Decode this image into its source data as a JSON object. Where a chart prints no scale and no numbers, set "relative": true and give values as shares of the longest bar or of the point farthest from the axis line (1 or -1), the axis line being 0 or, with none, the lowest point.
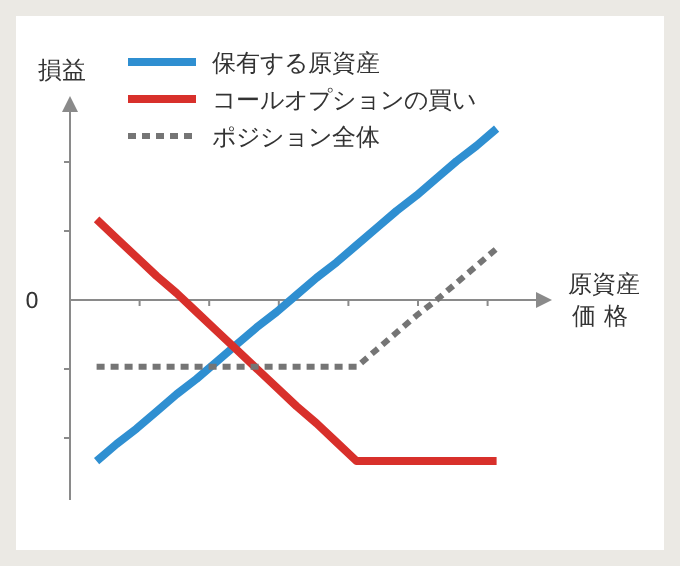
{
  "chart_data": {
    "type": "line",
    "relative": true,
    "ylabel": "損益",
    "xlabel": "原資産価格",
    "annotations": [
      "0"
    ],
    "legend": "top",
    "categories": [
      null,
      null,
      null,
      null,
      null,
      null,
      null,
      null,
      null,
      null,
      null,
      null,
      null,
      null,
      null,
      null,
      null,
      null,
      null,
      null,
      null
    ],
    "series": [
      {
        "name": "保有する原資産",
        "color": "#2f8fd1",
        "values": [
          -0.94,
          -0.84,
          -0.75,
          -0.65,
          -0.55,
          -0.46,
          -0.36,
          -0.26,
          -0.16,
          -0.07,
          0.03,
          0.13,
          0.22,
          0.32,
          0.42,
          0.52,
          0.61,
          0.71,
          0.81,
          0.9,
          1.0
        ]
      },
      {
        "name": "コールオプションの買い",
        "color": "#d8302b",
        "values": [
          0.47,
          0.36,
          0.25,
          0.14,
          0.04,
          -0.07,
          -0.18,
          -0.29,
          -0.4,
          -0.51,
          -0.62,
          -0.72,
          -0.83,
          -0.94,
          -0.94,
          -0.94,
          -0.94,
          -0.94,
          -0.94,
          -0.94,
          -0.94
        ]
      },
      {
        "name": "ポジション全体",
        "color": "#757575",
        "line_style": "dashed",
        "values": [
          -0.39,
          -0.39,
          -0.39,
          -0.39,
          -0.39,
          -0.39,
          -0.39,
          -0.39,
          -0.39,
          -0.39,
          -0.39,
          -0.39,
          -0.39,
          -0.39,
          -0.29,
          -0.19,
          -0.09,
          0.0,
          0.1,
          0.2,
          0.3
        ]
      }
    ]
  }
}
